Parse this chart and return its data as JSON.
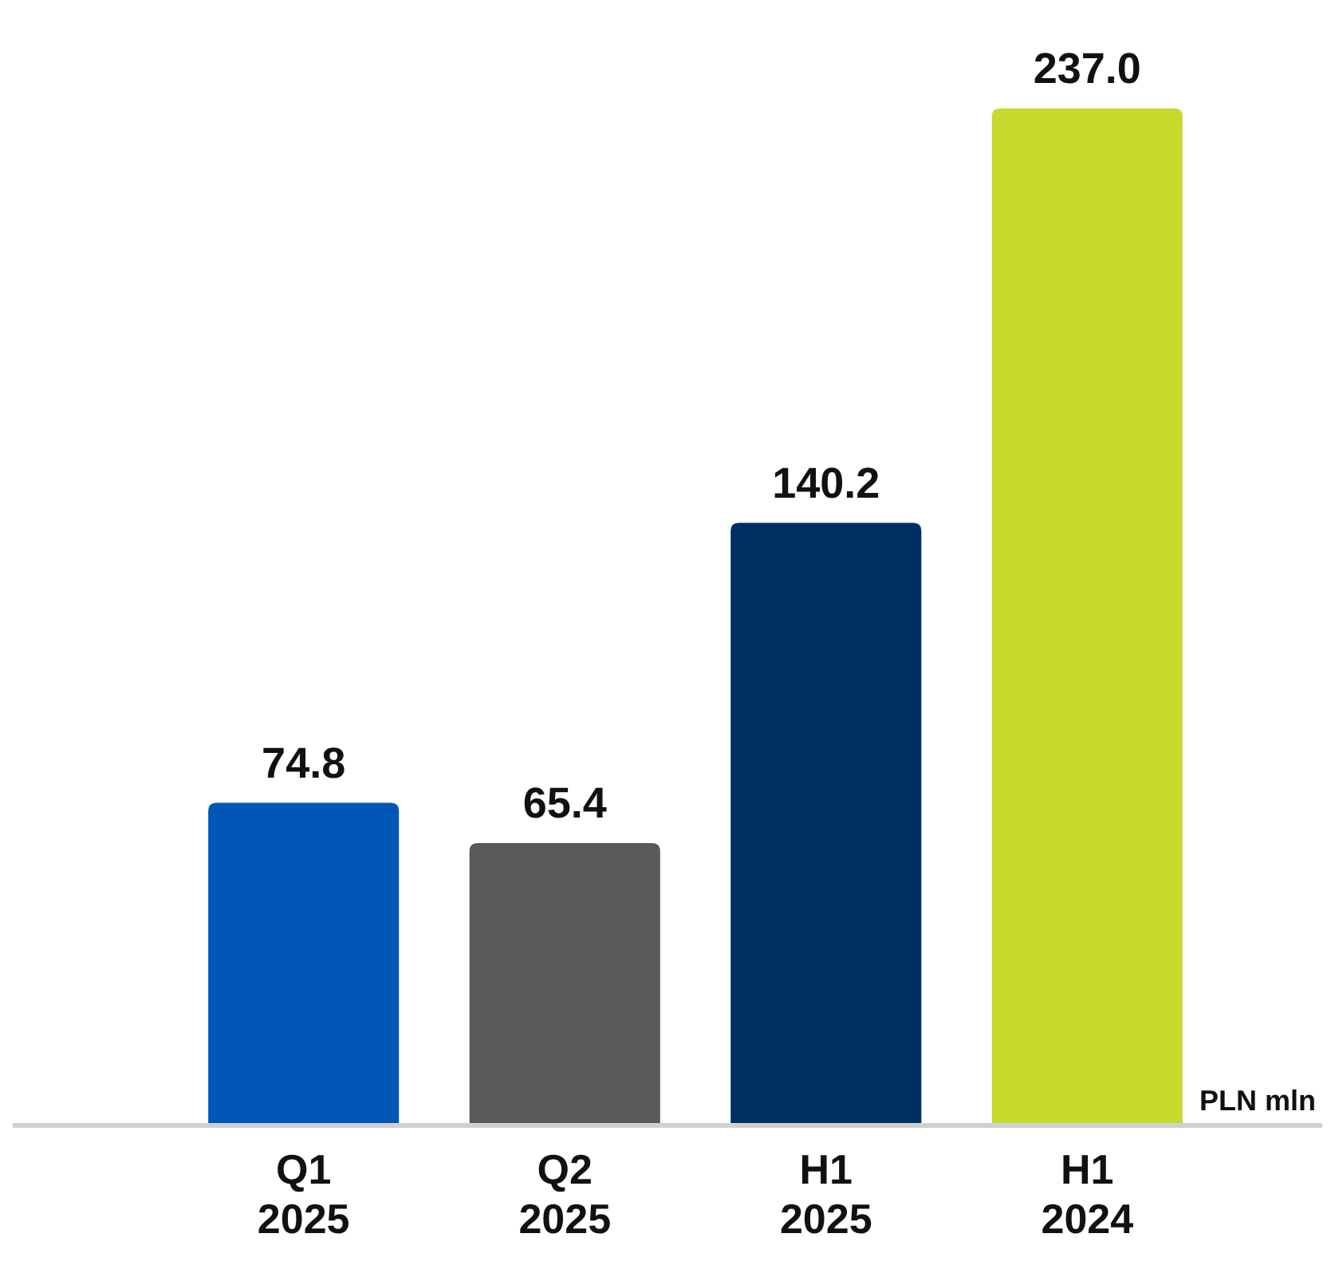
{
  "chart_data": {
    "type": "bar",
    "categories": [
      "Q1\n2025",
      "Q2\n2025",
      "H1\n2025",
      "H1\n2024"
    ],
    "values": [
      74.8,
      65.4,
      140.2,
      237.0
    ],
    "colors": [
      "#0057b8",
      "#58595b",
      "#003063",
      "#c8d92e"
    ],
    "value_labels": [
      "74.8",
      "65.4",
      "140.2",
      "237.0"
    ],
    "annotations": [
      "PLN mln"
    ]
  }
}
